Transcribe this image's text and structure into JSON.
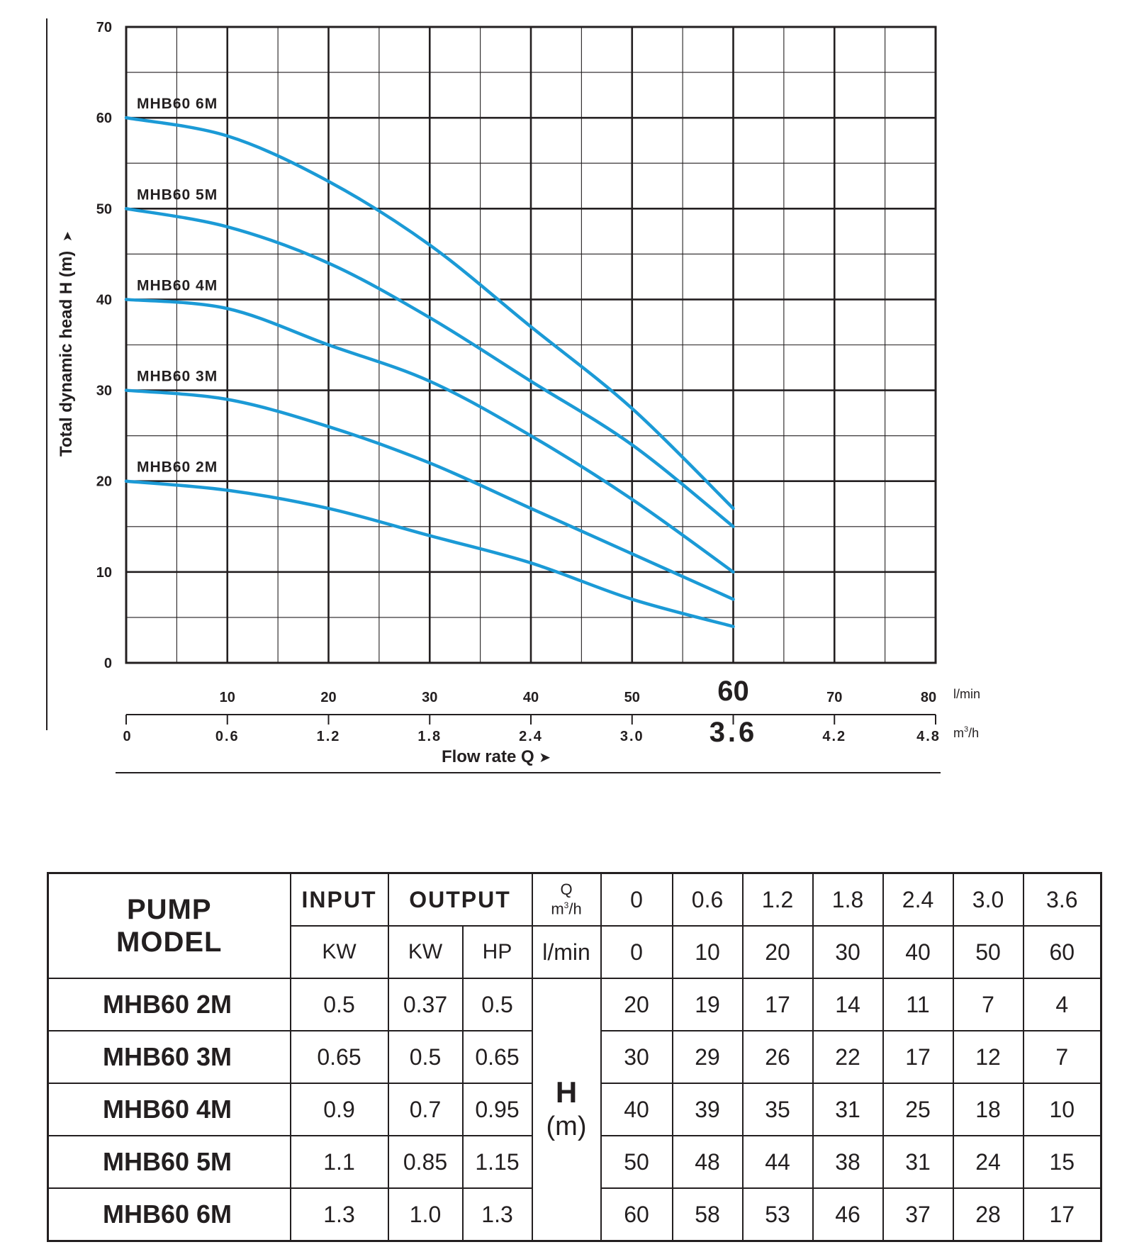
{
  "chart_data": {
    "type": "line",
    "title": "",
    "ylabel": "Total dynamic head H (m)",
    "ylabel_arrow": "➤",
    "xlabel": "Flow rate Q",
    "xlabel_arrow": "➤",
    "ylim": [
      0,
      70
    ],
    "xlim": [
      0,
      80
    ],
    "y_ticks": [
      "0",
      "10",
      "20",
      "30",
      "40",
      "50",
      "60",
      "70"
    ],
    "x_ticks_lmin": [
      "10",
      "20",
      "30",
      "40",
      "50",
      "60",
      "70",
      "80"
    ],
    "x_unit_lmin": "l/min",
    "x_ticks_m3h": [
      "0",
      "0.6",
      "1.2",
      "1.8",
      "2.4",
      "3.0",
      "3.6",
      "4.2",
      "4.8"
    ],
    "x_unit_m3h_base": "m",
    "x_unit_m3h_sup": "3",
    "x_unit_m3h_rest": "/h",
    "highlight_lmin": "60",
    "highlight_m3h": "3.6",
    "grid": true,
    "color": "#1b9ad6",
    "x": [
      0,
      10,
      20,
      30,
      40,
      50,
      60
    ],
    "series": [
      {
        "name": "MHB60 2M",
        "values": [
          20,
          19,
          17,
          14,
          11,
          7,
          4
        ]
      },
      {
        "name": "MHB60 3M",
        "values": [
          30,
          29,
          26,
          22,
          17,
          12,
          7
        ]
      },
      {
        "name": "MHB60 4M",
        "values": [
          40,
          39,
          35,
          31,
          25,
          18,
          10
        ]
      },
      {
        "name": "MHB60 5M",
        "values": [
          50,
          48,
          44,
          38,
          31,
          24,
          15
        ]
      },
      {
        "name": "MHB60 6M",
        "values": [
          60,
          58,
          53,
          46,
          37,
          28,
          17
        ]
      }
    ]
  },
  "table": {
    "model_header": [
      "PUMP",
      "MODEL"
    ],
    "input_header": "INPUT",
    "output_header": "OUTPUT",
    "q_header": "Q",
    "q_unit_base": "m",
    "q_unit_sup": "3",
    "q_unit_rest": "/h",
    "m3h_values": [
      "0",
      "0.6",
      "1.2",
      "1.8",
      "2.4",
      "3.0",
      "3.6"
    ],
    "input_unit": "KW",
    "output_units": [
      "KW",
      "HP"
    ],
    "lmin_label": "l/min",
    "lmin_values": [
      "0",
      "10",
      "20",
      "30",
      "40",
      "50",
      "60"
    ],
    "h_label": "H",
    "h_unit": "(m)",
    "rows": [
      {
        "model": "MHB60 2M",
        "input_kw": "0.5",
        "output_kw": "0.37",
        "output_hp": "0.5",
        "heads": [
          "20",
          "19",
          "17",
          "14",
          "11",
          "7",
          "4"
        ]
      },
      {
        "model": "MHB60 3M",
        "input_kw": "0.65",
        "output_kw": "0.5",
        "output_hp": "0.65",
        "heads": [
          "30",
          "29",
          "26",
          "22",
          "17",
          "12",
          "7"
        ]
      },
      {
        "model": "MHB60 4M",
        "input_kw": "0.9",
        "output_kw": "0.7",
        "output_hp": "0.95",
        "heads": [
          "40",
          "39",
          "35",
          "31",
          "25",
          "18",
          "10"
        ]
      },
      {
        "model": "MHB60 5M",
        "input_kw": "1.1",
        "output_kw": "0.85",
        "output_hp": "1.15",
        "heads": [
          "50",
          "48",
          "44",
          "38",
          "31",
          "24",
          "15"
        ]
      },
      {
        "model": "MHB60 6M",
        "input_kw": "1.3",
        "output_kw": "1.0",
        "output_hp": "1.3",
        "heads": [
          "60",
          "58",
          "53",
          "46",
          "37",
          "28",
          "17"
        ]
      }
    ]
  }
}
